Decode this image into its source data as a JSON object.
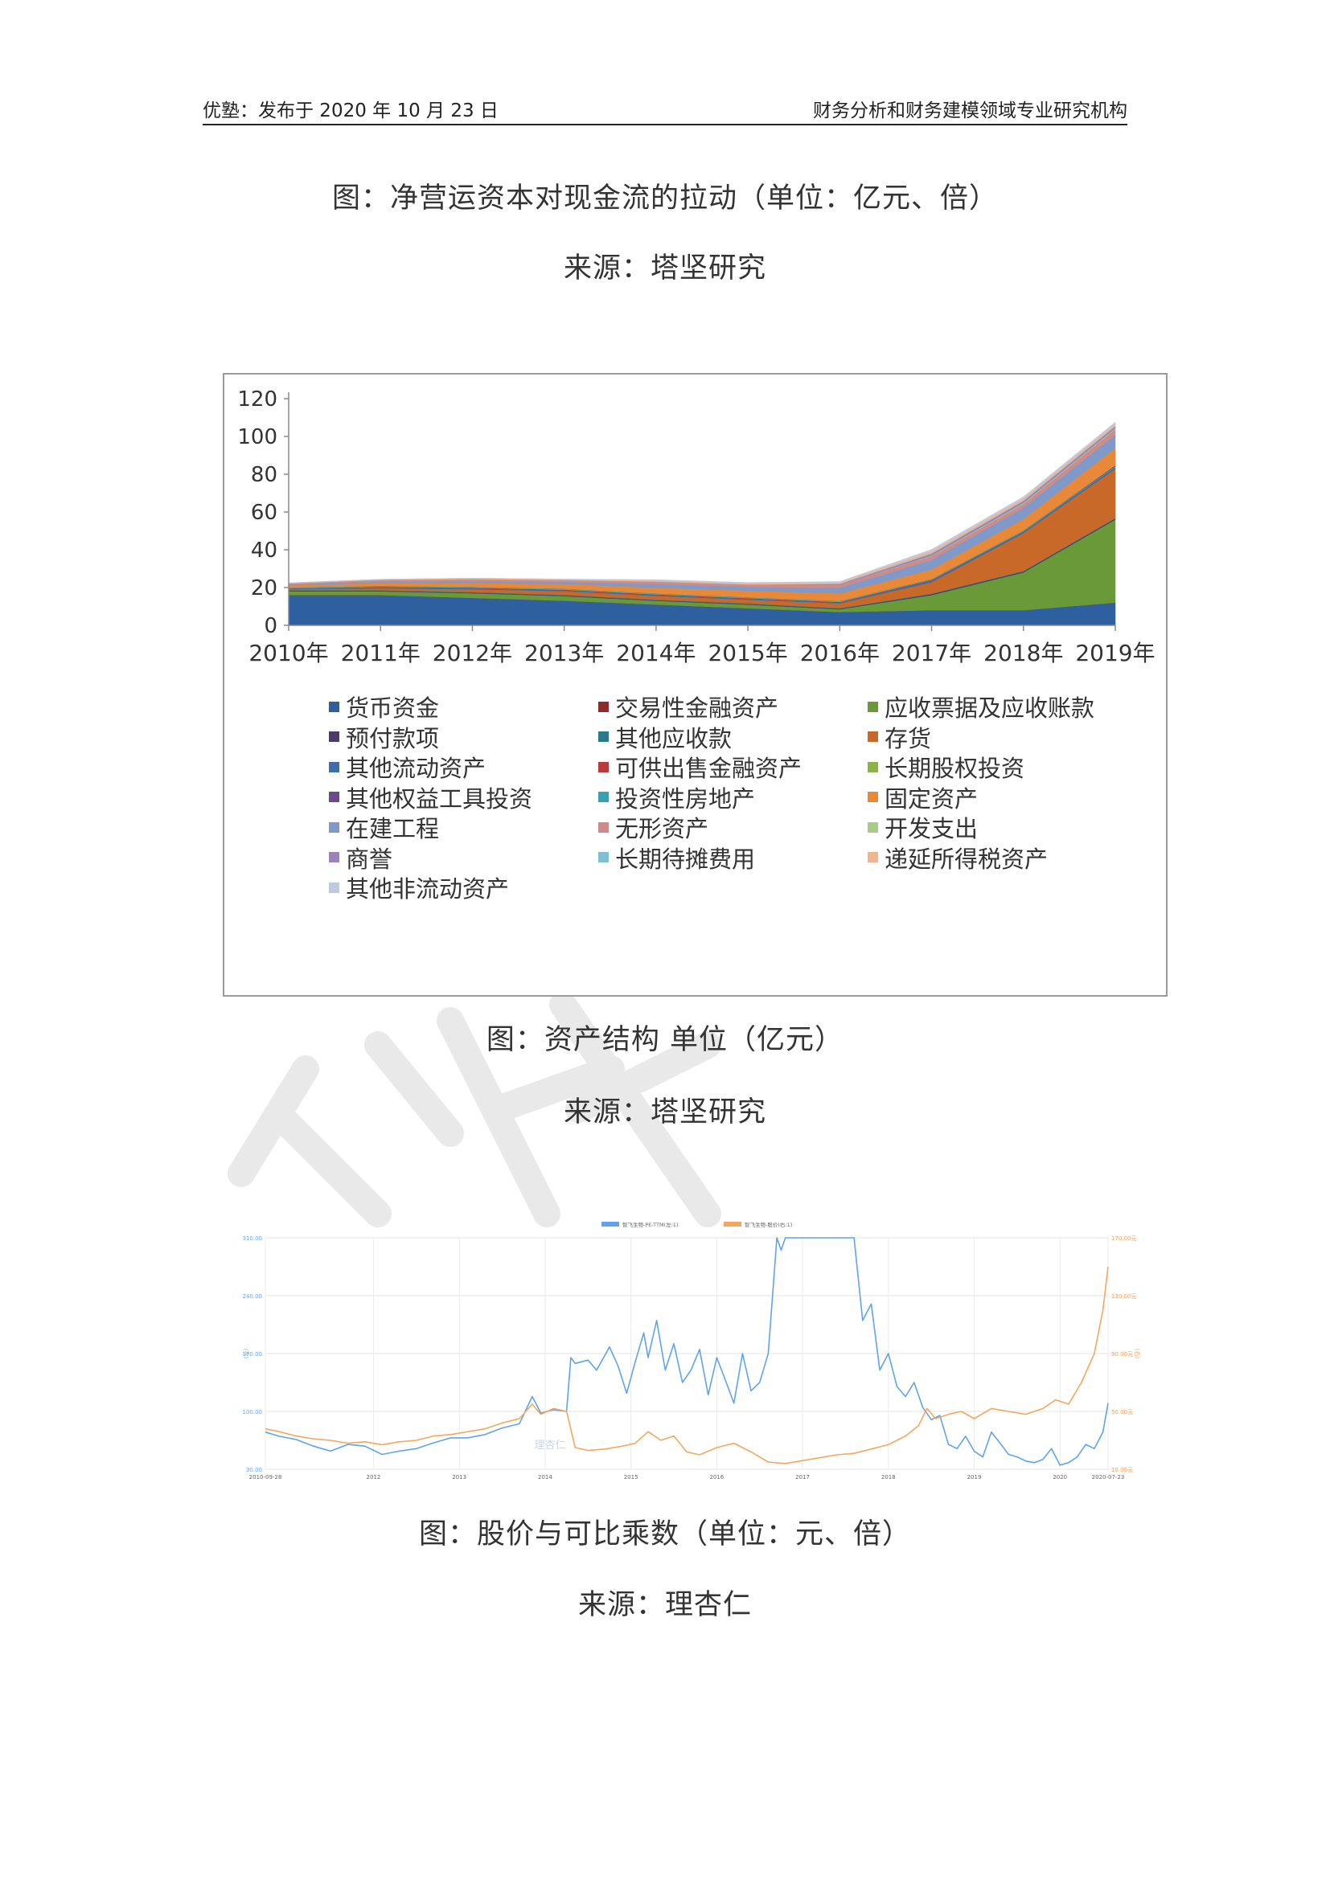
{
  "header": {
    "left": "优塾：发布于 2020 年 10 月 23 日",
    "right": "财务分析和财务建模领域专业研究机构"
  },
  "captions": {
    "fig1_title": "图：净营运资本对现金流的拉动（单位：亿元、倍）",
    "fig1_source": "来源：塔坚研究",
    "fig2_title": "图：资产结构  单位（亿元）",
    "fig2_source": "来源：塔坚研究",
    "fig3_title": "图：股价与可比乘数（单位：元、倍）",
    "fig3_source": "来源：理杏仁"
  },
  "watermark": {
    "text": "塔坚",
    "color": "#e9e9e9"
  },
  "chart_data": [
    {
      "type": "area",
      "stacked": true,
      "title": "",
      "xlabel": "",
      "ylabel": "",
      "categories": [
        "2010年",
        "2011年",
        "2012年",
        "2013年",
        "2014年",
        "2015年",
        "2016年",
        "2017年",
        "2018年",
        "2019年"
      ],
      "ylim": [
        0,
        120
      ],
      "yticks": [
        0,
        20,
        40,
        60,
        80,
        100,
        120
      ],
      "grid": false,
      "legend_position": "bottom",
      "series": [
        {
          "name": "货币资金",
          "color": "#2e5f9e",
          "values": [
            16,
            16,
            14.5,
            13,
            11,
            9,
            7,
            8,
            8,
            12
          ]
        },
        {
          "name": "交易性金融资产",
          "color": "#8c2a2e",
          "values": [
            0,
            0,
            0,
            0,
            0,
            0,
            0,
            0,
            0,
            0
          ]
        },
        {
          "name": "应收票据及应收账款",
          "color": "#6a9a38",
          "values": [
            2,
            2,
            2.5,
            2.5,
            2,
            2,
            1.5,
            8,
            20,
            44
          ]
        },
        {
          "name": "预付款项",
          "color": "#4b3a6b",
          "values": [
            0.3,
            0.3,
            0.3,
            0.3,
            0.3,
            0.3,
            0.3,
            0.5,
            0.5,
            0.5
          ]
        },
        {
          "name": "其他应收款",
          "color": "#2b7a8a",
          "values": [
            0.3,
            0.3,
            0.3,
            0.3,
            0.3,
            0.3,
            0.3,
            0.3,
            0.3,
            0.3
          ]
        },
        {
          "name": "存货",
          "color": "#c8692a",
          "values": [
            0.5,
            1,
            1.5,
            2,
            2,
            2,
            2.5,
            6,
            20,
            26
          ]
        },
        {
          "name": "其他流动资产",
          "color": "#3d6ea8",
          "values": [
            0.5,
            0.5,
            0.5,
            0.5,
            0.5,
            0.5,
            0.5,
            1,
            1,
            1
          ]
        },
        {
          "name": "可供出售金融资产",
          "color": "#b93a3a",
          "values": [
            0,
            0.3,
            0.3,
            0.3,
            0.3,
            0.3,
            0.3,
            0.3,
            0,
            0
          ]
        },
        {
          "name": "长期股权投资",
          "color": "#8bb34a",
          "values": [
            0.3,
            0.3,
            0.3,
            0.3,
            0.3,
            0.3,
            0.3,
            0.3,
            0.3,
            0.3
          ]
        },
        {
          "name": "其他权益工具投资",
          "color": "#6a4a8e",
          "values": [
            0,
            0,
            0,
            0,
            0,
            0,
            0,
            0,
            0,
            0.5
          ]
        },
        {
          "name": "投资性房地产",
          "color": "#3aa0b0",
          "values": [
            0.2,
            0.2,
            0.2,
            0.2,
            0.2,
            0.2,
            0.2,
            0.2,
            0.2,
            0.2
          ]
        },
        {
          "name": "固定资产",
          "color": "#e8893a",
          "values": [
            1,
            1.5,
            2,
            2.5,
            3,
            3.5,
            4,
            5,
            6,
            9
          ]
        },
        {
          "name": "在建工程",
          "color": "#7f99c8",
          "values": [
            0.5,
            0.8,
            1,
            1,
            2,
            2,
            3,
            5,
            6,
            7
          ]
        },
        {
          "name": "无形资产",
          "color": "#cf8a8a",
          "values": [
            0.5,
            0.8,
            1,
            1,
            1.2,
            1.2,
            1.5,
            2,
            2,
            3
          ]
        },
        {
          "name": "开发支出",
          "color": "#a8cc88",
          "values": [
            0,
            0,
            0,
            0,
            0,
            0,
            0,
            0.3,
            0.5,
            0.5
          ]
        },
        {
          "name": "商誉",
          "color": "#9a83bd",
          "values": [
            0,
            0,
            0,
            0,
            0,
            0,
            0.5,
            1,
            1,
            1
          ]
        },
        {
          "name": "长期待摊费用",
          "color": "#7fc0d0",
          "values": [
            0.1,
            0.1,
            0.1,
            0.1,
            0.1,
            0.1,
            0.1,
            0.3,
            0.3,
            0.3
          ]
        },
        {
          "name": "递延所得税资产",
          "color": "#f2b48c",
          "values": [
            0.3,
            0.3,
            0.5,
            0.5,
            0.5,
            0.5,
            0.7,
            1,
            1,
            1
          ]
        },
        {
          "name": "其他非流动资产",
          "color": "#c3c8dd",
          "values": [
            0,
            0,
            0,
            0,
            0.5,
            0.5,
            0.5,
            1,
            1,
            1
          ]
        }
      ]
    },
    {
      "type": "line",
      "title": "",
      "legend": [
        "智飞生物-PE-TTM(左:1)",
        "智飞生物-股价(右:1)"
      ],
      "legend_position": "top",
      "left_axis": {
        "label": "(左)",
        "ticks": [
          "30.00",
          "100.00",
          "170.00",
          "240.00",
          "310.00"
        ],
        "range": [
          30,
          310
        ],
        "color": "#6aa7e8"
      },
      "right_axis": {
        "label": "(右)",
        "ticks": [
          "10.00元",
          "50.00元",
          "90.00元",
          "130.00元",
          "170.00元"
        ],
        "range": [
          10,
          170
        ],
        "color": "#f3a15a"
      },
      "x_ticks": [
        "2010-09-28",
        "2012",
        "2013",
        "2014",
        "2015",
        "2016",
        "2017",
        "2018",
        "2019",
        "2020",
        "2020-07-23"
      ],
      "x_range": [
        2010.74,
        2020.56
      ],
      "grid": true,
      "watermark": "理杏仁",
      "series": [
        {
          "name": "智飞生物-PE-TTM(左:1)",
          "axis": "left",
          "color": "#5fa4ea",
          "x": [
            2010.74,
            2010.9,
            2011.1,
            2011.3,
            2011.5,
            2011.7,
            2011.9,
            2012.1,
            2012.3,
            2012.5,
            2012.7,
            2012.9,
            2013.1,
            2013.3,
            2013.5,
            2013.7,
            2013.85,
            2013.95,
            2014.1,
            2014.25,
            2014.3,
            2014.35,
            2014.5,
            2014.6,
            2014.75,
            2014.85,
            2014.95,
            2015.05,
            2015.15,
            2015.2,
            2015.3,
            2015.4,
            2015.5,
            2015.6,
            2015.7,
            2015.8,
            2015.9,
            2016.0,
            2016.1,
            2016.2,
            2016.3,
            2016.4,
            2016.5,
            2016.6,
            2016.7,
            2016.75,
            2016.8,
            2016.9,
            2017.0,
            2017.2,
            2017.4,
            2017.6,
            2017.7,
            2017.8,
            2017.9,
            2018.0,
            2018.1,
            2018.2,
            2018.3,
            2018.4,
            2018.5,
            2018.6,
            2018.7,
            2018.8,
            2018.9,
            2019.0,
            2019.1,
            2019.2,
            2019.3,
            2019.4,
            2019.5,
            2019.6,
            2019.7,
            2019.8,
            2019.9,
            2020.0,
            2020.1,
            2020.2,
            2020.3,
            2020.4,
            2020.5,
            2020.56
          ],
          "y": [
            75,
            70,
            66,
            58,
            52,
            60,
            58,
            48,
            52,
            55,
            62,
            68,
            68,
            72,
            80,
            85,
            118,
            98,
            102,
            100,
            165,
            158,
            162,
            150,
            178,
            155,
            122,
            160,
            195,
            165,
            210,
            150,
            182,
            135,
            150,
            175,
            120,
            165,
            138,
            110,
            170,
            125,
            135,
            170,
            310,
            295,
            310,
            310,
            310,
            310,
            310,
            310,
            210,
            230,
            150,
            170,
            130,
            118,
            135,
            105,
            90,
            95,
            60,
            55,
            70,
            52,
            45,
            75,
            62,
            48,
            45,
            40,
            38,
            42,
            55,
            35,
            38,
            45,
            60,
            55,
            75,
            110
          ]
        },
        {
          "name": "智飞生物-股价(右:1)",
          "axis": "right",
          "color": "#f4a75e",
          "x": [
            2010.74,
            2010.9,
            2011.1,
            2011.3,
            2011.5,
            2011.7,
            2011.9,
            2012.1,
            2012.3,
            2012.5,
            2012.7,
            2012.9,
            2013.1,
            2013.3,
            2013.5,
            2013.7,
            2013.85,
            2013.95,
            2014.1,
            2014.25,
            2014.35,
            2014.5,
            2014.7,
            2014.9,
            2015.05,
            2015.2,
            2015.35,
            2015.5,
            2015.65,
            2015.8,
            2016.0,
            2016.2,
            2016.4,
            2016.6,
            2016.8,
            2017.0,
            2017.2,
            2017.4,
            2017.6,
            2017.8,
            2018.0,
            2018.2,
            2018.35,
            2018.45,
            2018.55,
            2018.7,
            2018.85,
            2019.0,
            2019.2,
            2019.4,
            2019.6,
            2019.8,
            2019.95,
            2020.1,
            2020.25,
            2020.4,
            2020.5,
            2020.56
          ],
          "y": [
            38,
            36,
            33,
            31,
            30,
            28,
            29,
            27,
            29,
            30,
            33,
            34,
            36,
            38,
            42,
            45,
            55,
            48,
            52,
            50,
            25,
            23,
            24,
            26,
            28,
            36,
            30,
            33,
            22,
            20,
            25,
            28,
            22,
            15,
            14,
            16,
            18,
            20,
            21,
            24,
            27,
            33,
            40,
            52,
            45,
            48,
            50,
            45,
            52,
            50,
            48,
            52,
            58,
            55,
            70,
            90,
            120,
            150
          ]
        }
      ]
    }
  ]
}
